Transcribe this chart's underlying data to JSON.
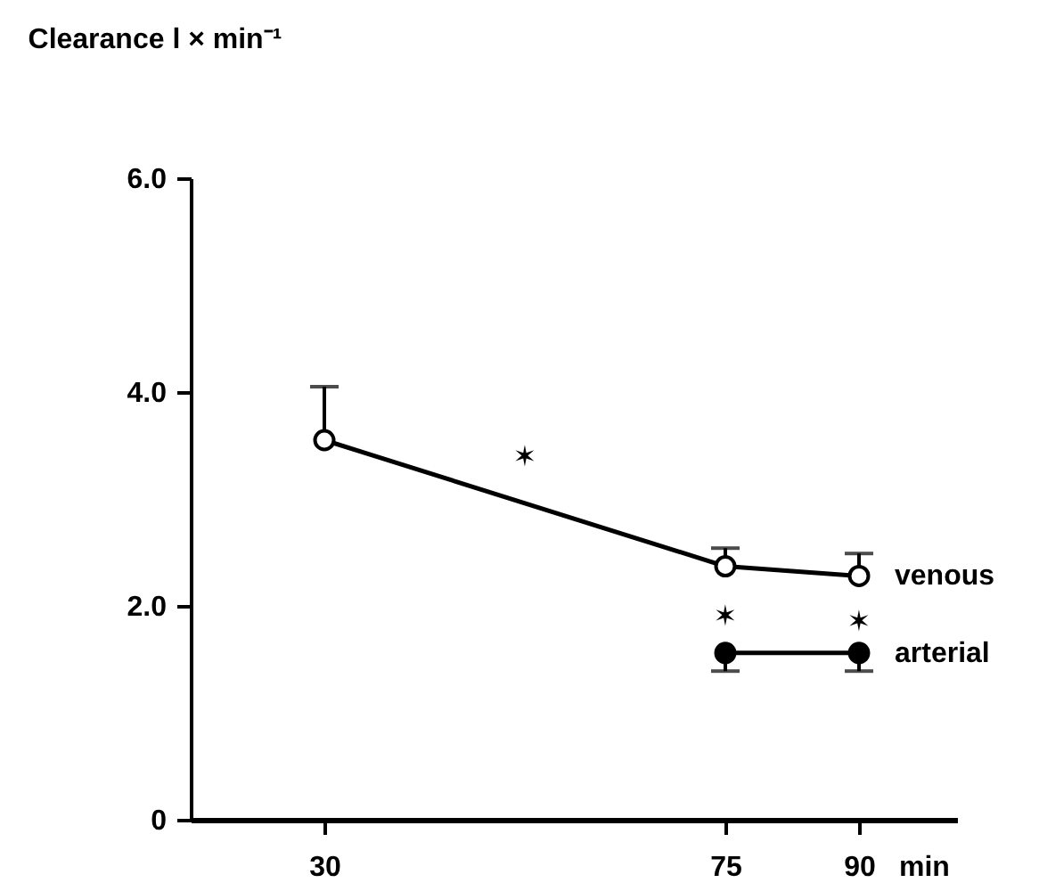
{
  "chart_data": {
    "type": "line",
    "title": "Clearance l × min⁻¹",
    "xlabel": "min",
    "x": [
      30,
      75,
      90
    ],
    "xlim": [
      15,
      101
    ],
    "xticks": [
      30,
      75,
      90
    ],
    "ylim": [
      0,
      6
    ],
    "yticks": [
      0,
      {
        "value": 2,
        "label": "2.0"
      },
      {
        "value": 4,
        "label": "4.0"
      },
      {
        "value": 6,
        "label": "6.0"
      }
    ],
    "series": [
      {
        "name": "venous",
        "color": "#000000",
        "values": [
          3.55,
          2.37,
          2.28
        ],
        "errors": [
          [
            3.55,
            4.05
          ],
          [
            2.37,
            2.54
          ],
          [
            2.28,
            2.49
          ]
        ]
      },
      {
        "name": "arterial",
        "color": "#000000",
        "x": [
          75,
          90
        ],
        "values": [
          1.56,
          1.56
        ],
        "errors": [
          [
            1.39,
            1.56
          ],
          [
            1.39,
            1.56
          ]
        ]
      }
    ],
    "annotations": [
      "✶",
      "✶",
      "✶"
    ],
    "marker": "circle",
    "line_style": "solid",
    "legend": false,
    "grid": false
  }
}
